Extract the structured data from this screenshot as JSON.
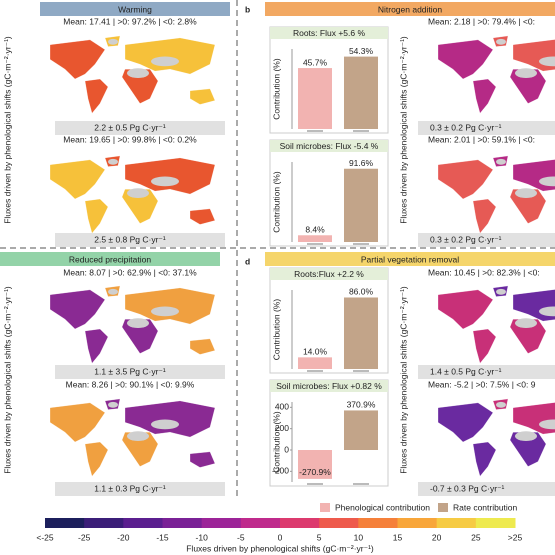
{
  "panels": [
    {
      "title": "Warming",
      "axis_label": "Fluxes driven by phenological shifts (gC·m⁻²·yr⁻¹)",
      "maps": [
        {
          "stats": "Mean: 17.41 | >0: 97.2% | <0: 2.8%",
          "total": "2.2 ± 0.5 Pg C·yr⁻¹"
        },
        {
          "stats": "Mean: 19.65 | >0: 99.8% | <0: 0.2%",
          "total": "2.5 ± 0.8 Pg C·yr⁻¹"
        }
      ]
    },
    {
      "label": "b",
      "title": "Nitrogen addition",
      "axis_label": "Fluxes driven by phenological shifts (gC·m⁻²·yr⁻¹)",
      "maps": [
        {
          "stats": "Mean: 2.18 | >0: 79.4% | <0:",
          "total": "0.3 ± 0.2 Pg C·yr⁻¹"
        },
        {
          "stats": "Mean: 2.01 | >0: 59.1% | <0:",
          "total": "0.3 ± 0.2 Pg C·yr⁻¹"
        }
      ]
    },
    {
      "title": "Reduced precipitation",
      "axis_label": "Fluxes driven by phenological shifts (gC·m⁻²·yr⁻¹)",
      "maps": [
        {
          "stats": "Mean: 8.07 | >0: 62.9% | <0: 37.1%",
          "total": "1.1 ± 3.5 Pg C·yr⁻¹"
        },
        {
          "stats": "Mean: 8.26 | >0: 90.1% | <0: 9.9%",
          "total": "1.1 ± 0.3 Pg C·yr⁻¹"
        }
      ]
    },
    {
      "label": "d",
      "title": "Partial vegetation removal",
      "axis_label": "Fluxes driven by phenological shifts (gC·m⁻²·yr⁻¹)",
      "maps": [
        {
          "stats": "Mean: 10.45 | >0: 82.3% | <0:",
          "total": "1.4 ± 0.5 Pg C·yr⁻¹"
        },
        {
          "stats": "Mean: -5.2 | >0: 7.5% | <0: 9",
          "total": "-0.7 ± 0.3 Pg C·yr⁻¹"
        }
      ]
    }
  ],
  "chart_data": [
    {
      "type": "bar",
      "title": "Roots: Flux +5.6 %",
      "ylabel": "Contribution (%)",
      "categories": [
        null,
        null
      ],
      "values": [
        45.7,
        54.3
      ],
      "value_labels": [
        "45.7%",
        "54.3%"
      ],
      "colors": [
        "#f2b3b1",
        "#c2a489"
      ],
      "ylim": [
        0,
        60
      ]
    },
    {
      "type": "bar",
      "title": "Soil microbes: Flux -5.4 %",
      "ylabel": "Contribution (%)",
      "categories": [
        null,
        null
      ],
      "values": [
        8.4,
        91.6
      ],
      "value_labels": [
        "8.4%",
        "91.6%"
      ],
      "colors": [
        "#f2b3b1",
        "#c2a489"
      ],
      "ylim": [
        0,
        100
      ]
    },
    {
      "type": "bar",
      "title": "Roots:Flux +2.2 %",
      "ylabel": "Contribution (%)",
      "categories": [
        null,
        null
      ],
      "values": [
        14.0,
        86.0
      ],
      "value_labels": [
        "14.0%",
        "86.0%"
      ],
      "colors": [
        "#f2b3b1",
        "#c2a489"
      ],
      "ylim": [
        0,
        95
      ]
    },
    {
      "type": "bar",
      "title": "Soil microbes: Flux +0.82 %",
      "ylabel": "Contribution (%)",
      "categories": [
        null,
        null
      ],
      "values": [
        -270.9,
        370.9
      ],
      "value_labels": [
        "-270.9%",
        "370.9%"
      ],
      "colors": [
        "#f2b3b1",
        "#c2a489"
      ],
      "ylim": [
        -300,
        450
      ],
      "yticks": [
        -200,
        0,
        200,
        400
      ]
    }
  ],
  "legend": [
    {
      "label": "Phenological contribution",
      "color": "#f2b3b1"
    },
    {
      "label": "Rate contribution",
      "color": "#c2a489"
    }
  ],
  "colorbar": {
    "title": "Fluxes driven by phenological shifts (gC·m⁻²·yr⁻¹)",
    "tick_labels": [
      "<-25",
      "-25",
      "-20",
      "-15",
      "-10",
      "-5",
      "0",
      "5",
      "10",
      "15",
      "20",
      "25",
      ">25"
    ],
    "colors": [
      "#1c1f5c",
      "#3b1e78",
      "#5b1f8f",
      "#7a2196",
      "#9c2498",
      "#bf2a8c",
      "#dc3a6e",
      "#ee5a4c",
      "#f5803a",
      "#f8a63a",
      "#f6cb44",
      "#eeea4f"
    ]
  }
}
